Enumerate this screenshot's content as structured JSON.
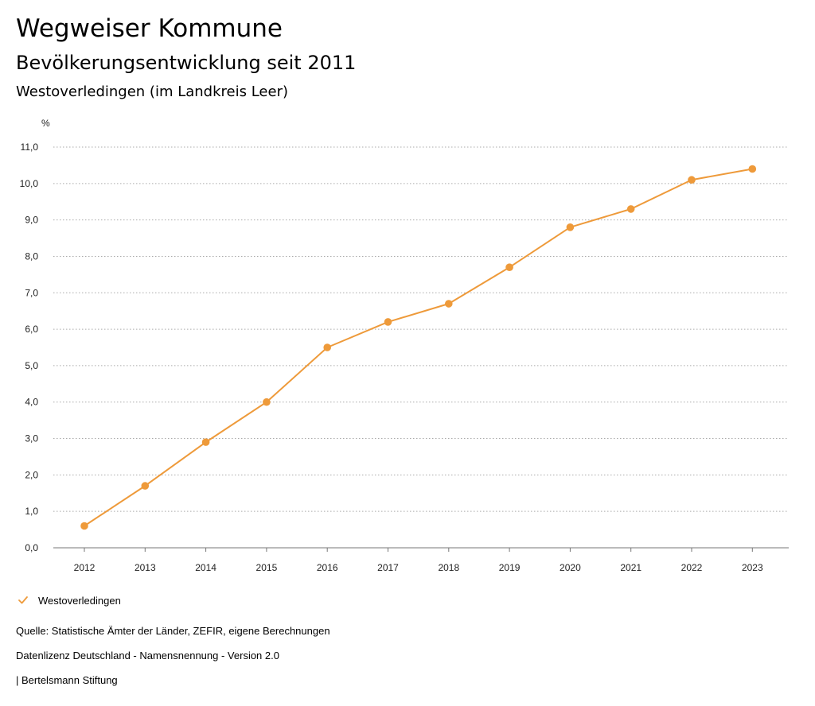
{
  "header": {
    "title": "Wegweiser Kommune",
    "subtitle": "Bevölkerungsentwicklung seit 2011",
    "region": "Westoverledingen (im Landkreis Leer)"
  },
  "chart_data": {
    "type": "line",
    "title": "Bevölkerungsentwicklung seit 2011",
    "unit": "%",
    "xlabel": "",
    "ylabel": "%",
    "categories": [
      "2012",
      "2013",
      "2014",
      "2015",
      "2016",
      "2017",
      "2018",
      "2019",
      "2020",
      "2021",
      "2022",
      "2023"
    ],
    "series": [
      {
        "name": "Westoverledingen",
        "color": "#ee9a3a",
        "values": [
          0.6,
          1.7,
          2.9,
          4.0,
          5.5,
          6.2,
          6.7,
          7.7,
          8.8,
          9.3,
          10.1,
          10.4
        ]
      }
    ],
    "ylim": [
      0,
      11
    ],
    "yticks": [
      "0,0",
      "1,0",
      "2,0",
      "3,0",
      "4,0",
      "5,0",
      "6,0",
      "7,0",
      "8,0",
      "9,0",
      "10,0",
      "11,0"
    ],
    "grid": true,
    "legend_position": "bottom-left"
  },
  "legend": {
    "label": "Westoverledingen",
    "icon": "check-icon"
  },
  "footer": {
    "source": "Quelle: Statistische Ämter der Länder, ZEFIR, eigene Berechnungen",
    "license": "Datenlizenz Deutschland - Namensnennung - Version 2.0",
    "publisher": "| Bertelsmann Stiftung"
  },
  "colors": {
    "series": "#ee9a3a",
    "grid": "#aaaaaa",
    "text": "#222222"
  }
}
